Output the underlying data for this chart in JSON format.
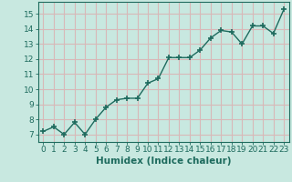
{
  "x": [
    0,
    1,
    2,
    3,
    4,
    5,
    6,
    7,
    8,
    9,
    10,
    11,
    12,
    13,
    14,
    15,
    16,
    17,
    18,
    19,
    20,
    21,
    22,
    23
  ],
  "y": [
    7.2,
    7.5,
    7.0,
    7.8,
    7.0,
    8.0,
    8.8,
    9.3,
    9.4,
    9.4,
    10.4,
    10.7,
    12.1,
    12.1,
    12.1,
    12.6,
    13.4,
    13.9,
    13.8,
    13.0,
    14.2,
    14.2,
    13.7,
    15.3
  ],
  "line_color": "#1e6b5e",
  "marker": "+",
  "marker_size": 4,
  "marker_lw": 1.2,
  "bg_color": "#c8e8e0",
  "grid_color": "#d8b8b8",
  "xlabel": "Humidex (Indice chaleur)",
  "ylim": [
    6.5,
    15.8
  ],
  "xlim": [
    -0.5,
    23.5
  ],
  "yticks": [
    7,
    8,
    9,
    10,
    11,
    12,
    13,
    14,
    15
  ],
  "xticks": [
    0,
    1,
    2,
    3,
    4,
    5,
    6,
    7,
    8,
    9,
    10,
    11,
    12,
    13,
    14,
    15,
    16,
    17,
    18,
    19,
    20,
    21,
    22,
    23
  ],
  "tick_color": "#1e6b5e",
  "label_fontsize": 6.5,
  "xlabel_fontsize": 7.5,
  "linewidth": 1.0
}
